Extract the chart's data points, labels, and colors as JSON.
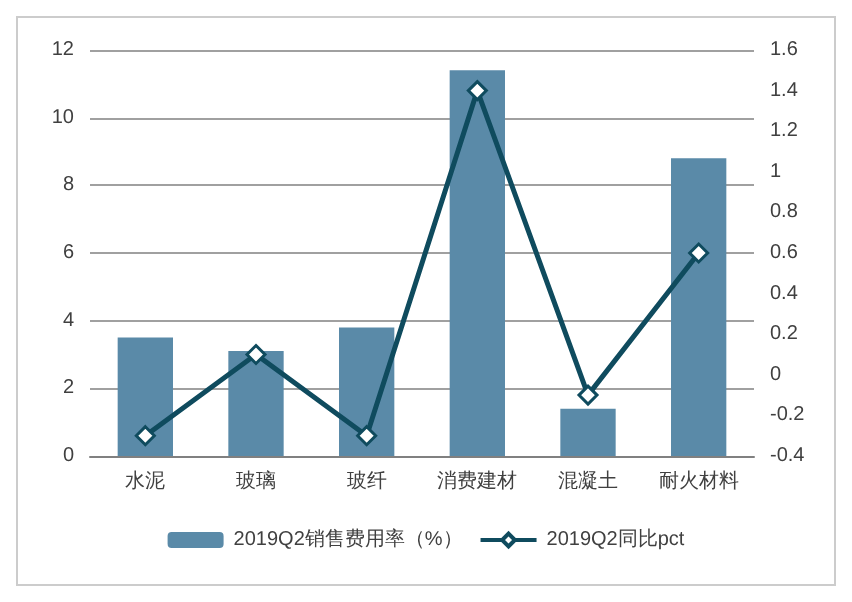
{
  "chart_data": {
    "type": "bar",
    "categories": [
      "水泥",
      "玻璃",
      "玻纤",
      "消费建材",
      "混凝土",
      "耐火材料"
    ],
    "series": [
      {
        "name": "2019Q2销售费用率（%）",
        "color": "#5a8aa8",
        "values": [
          3.5,
          3.1,
          3.8,
          11.4,
          1.4,
          8.8
        ]
      },
      {
        "name": "2019Q2同比pct",
        "type": "line",
        "axis": "y2",
        "color": "#0f4b5e",
        "marker": "diamond",
        "values": [
          -0.3,
          0.1,
          -0.3,
          1.4,
          -0.1,
          0.6
        ]
      }
    ],
    "ylim": [
      0,
      12
    ],
    "yticks": [
      0,
      2,
      4,
      6,
      8,
      10,
      12
    ],
    "y2lim": [
      -0.4,
      1.6
    ],
    "y2ticks": [
      -0.4,
      -0.2,
      0,
      0.2,
      0.4,
      0.6,
      0.8,
      1,
      1.2,
      1.4,
      1.6
    ],
    "grid": "y",
    "legend": "bottom"
  }
}
